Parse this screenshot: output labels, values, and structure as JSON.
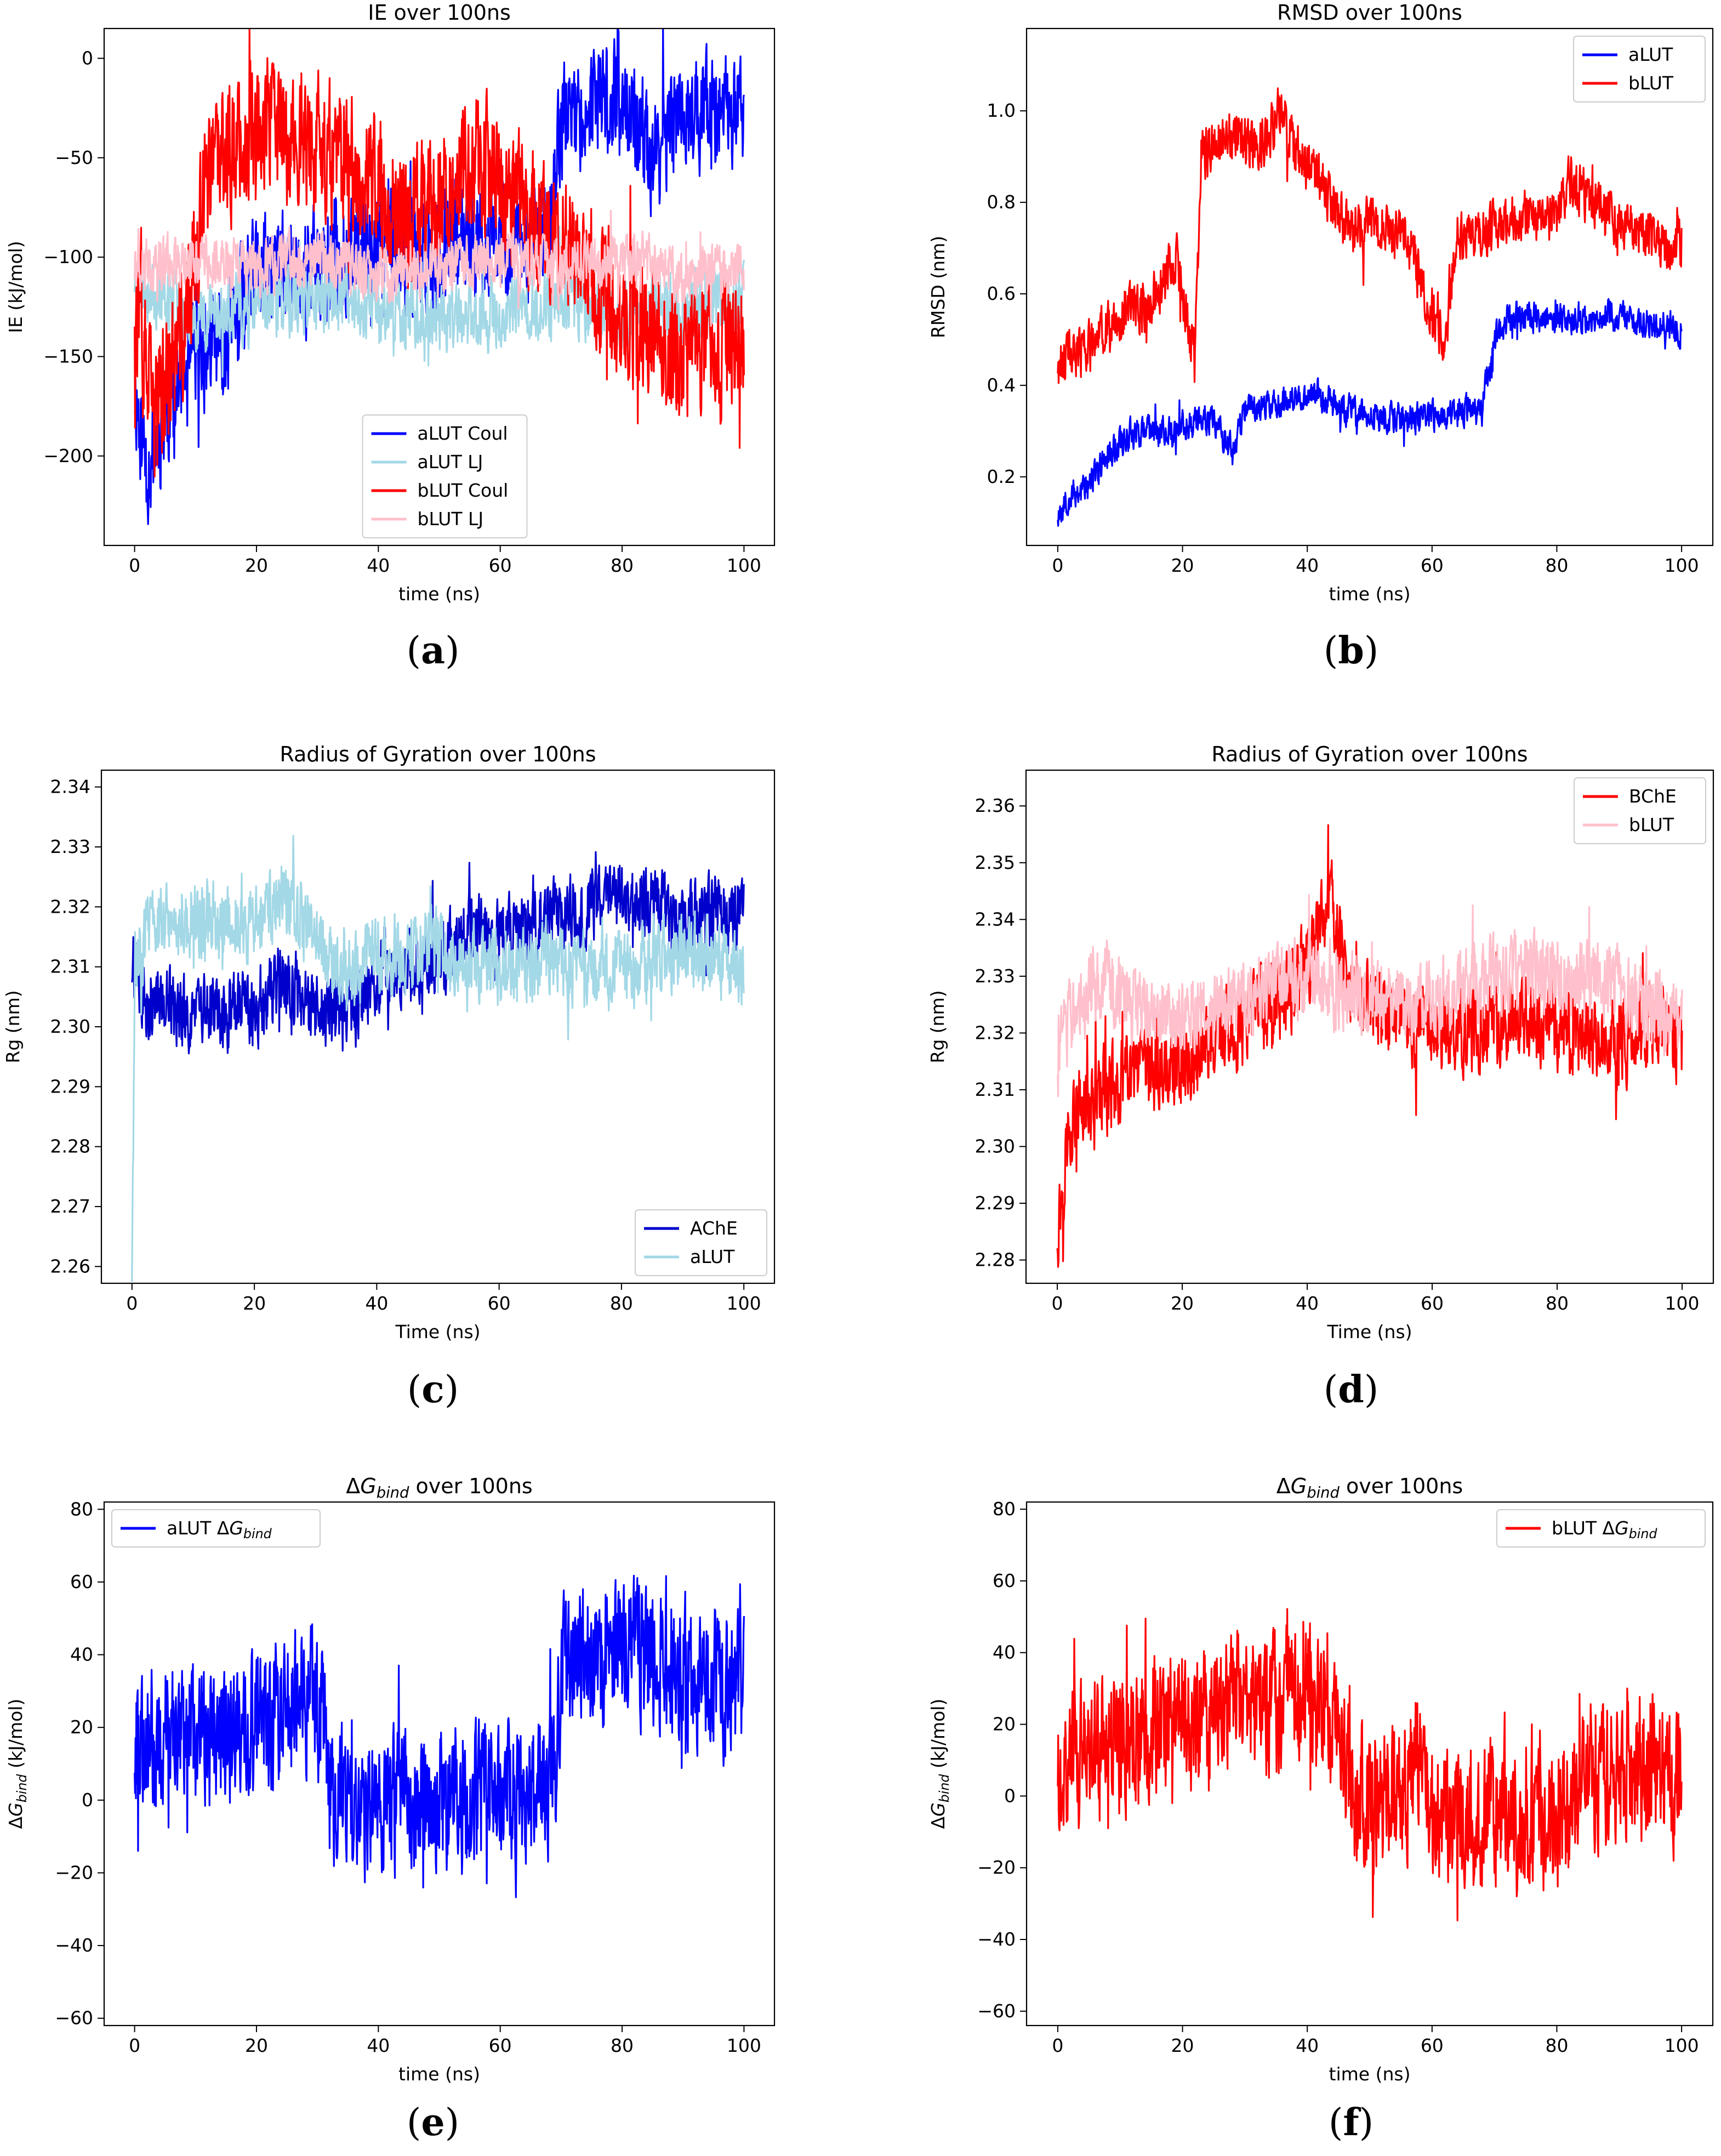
{
  "chart_data": [
    {
      "id": "a",
      "type": "line",
      "title": "IE over 100ns",
      "xlabel": "time (ns)",
      "ylabel": "IE (kJ/mol)",
      "xlim": [
        -5,
        105
      ],
      "ylim": [
        -245,
        15
      ],
      "xticks": [
        0,
        20,
        40,
        60,
        80,
        100
      ],
      "yticks": [
        0,
        -50,
        -100,
        -150,
        -200
      ],
      "legend_position": "lower-center",
      "caption": "(a)",
      "caption_letter": "a",
      "series": [
        {
          "name": "aLUT Coul",
          "color": "#0000ff",
          "segments": [
            [
              0,
              -165
            ],
            [
              2,
              -205
            ],
            [
              5,
              -180
            ],
            [
              10,
              -150
            ],
            [
              15,
              -140
            ],
            [
              20,
              -110
            ],
            [
              30,
              -105
            ],
            [
              40,
              -95
            ],
            [
              50,
              -100
            ],
            [
              60,
              -90
            ],
            [
              68,
              -95
            ],
            [
              70,
              -30
            ],
            [
              75,
              -25
            ],
            [
              80,
              -20
            ],
            [
              85,
              -50
            ],
            [
              90,
              -25
            ],
            [
              95,
              -30
            ],
            [
              100,
              -25
            ]
          ],
          "noise": 25,
          "seed": 11
        },
        {
          "name": "aLUT LJ",
          "color": "#a3d8e6",
          "segments": [
            [
              0,
              -110
            ],
            [
              10,
              -130
            ],
            [
              20,
              -125
            ],
            [
              30,
              -120
            ],
            [
              40,
              -125
            ],
            [
              50,
              -130
            ],
            [
              60,
              -130
            ],
            [
              70,
              -120
            ],
            [
              80,
              -130
            ],
            [
              90,
              -125
            ],
            [
              100,
              -120
            ]
          ],
          "noise": 15,
          "seed": 23
        },
        {
          "name": "bLUT Coul",
          "color": "#ff0000",
          "segments": [
            [
              0,
              -120
            ],
            [
              3,
              -180
            ],
            [
              8,
              -140
            ],
            [
              12,
              -60
            ],
            [
              20,
              -30
            ],
            [
              25,
              -40
            ],
            [
              30,
              -45
            ],
            [
              38,
              -60
            ],
            [
              45,
              -80
            ],
            [
              55,
              -50
            ],
            [
              62,
              -70
            ],
            [
              70,
              -90
            ],
            [
              75,
              -110
            ],
            [
              80,
              -130
            ],
            [
              85,
              -140
            ],
            [
              90,
              -150
            ],
            [
              100,
              -140
            ]
          ],
          "noise": 30,
          "seed": 37
        },
        {
          "name": "bLUT LJ",
          "color": "#ffc0cb",
          "segments": [
            [
              0,
              -105
            ],
            [
              10,
              -100
            ],
            [
              20,
              -105
            ],
            [
              30,
              -100
            ],
            [
              40,
              -110
            ],
            [
              50,
              -105
            ],
            [
              60,
              -100
            ],
            [
              70,
              -105
            ],
            [
              80,
              -100
            ],
            [
              90,
              -110
            ],
            [
              100,
              -105
            ]
          ],
          "noise": 12,
          "seed": 41
        }
      ]
    },
    {
      "id": "b",
      "type": "line",
      "title": "RMSD over 100ns",
      "xlabel": "time (ns)",
      "ylabel": "RMSD (nm)",
      "xlim": [
        -5,
        105
      ],
      "ylim": [
        0.05,
        1.18
      ],
      "xticks": [
        0,
        20,
        40,
        60,
        80,
        100
      ],
      "yticks": [
        0.2,
        0.4,
        0.6,
        0.8,
        1.0
      ],
      "legend_position": "top-right",
      "caption": "(b)",
      "caption_letter": "b",
      "series": [
        {
          "name": "aLUT",
          "color": "#0000ff",
          "segments": [
            [
              0,
              0.12
            ],
            [
              2,
              0.16
            ],
            [
              5,
              0.18
            ],
            [
              8,
              0.25
            ],
            [
              12,
              0.3
            ],
            [
              18,
              0.3
            ],
            [
              22,
              0.32
            ],
            [
              25,
              0.33
            ],
            [
              28,
              0.25
            ],
            [
              30,
              0.35
            ],
            [
              35,
              0.36
            ],
            [
              42,
              0.38
            ],
            [
              45,
              0.35
            ],
            [
              50,
              0.33
            ],
            [
              60,
              0.33
            ],
            [
              68,
              0.35
            ],
            [
              70,
              0.5
            ],
            [
              72,
              0.55
            ],
            [
              80,
              0.55
            ],
            [
              90,
              0.55
            ],
            [
              100,
              0.52
            ]
          ],
          "noise": 0.03,
          "seed": 53
        },
        {
          "name": "bLUT",
          "color": "#ff0000",
          "segments": [
            [
              0,
              0.45
            ],
            [
              5,
              0.48
            ],
            [
              10,
              0.55
            ],
            [
              15,
              0.58
            ],
            [
              19,
              0.68
            ],
            [
              21,
              0.52
            ],
            [
              22,
              0.48
            ],
            [
              23,
              0.9
            ],
            [
              28,
              0.95
            ],
            [
              32,
              0.92
            ],
            [
              36,
              1.0
            ],
            [
              38,
              0.92
            ],
            [
              42,
              0.85
            ],
            [
              46,
              0.75
            ],
            [
              50,
              0.75
            ],
            [
              56,
              0.72
            ],
            [
              60,
              0.55
            ],
            [
              62,
              0.5
            ],
            [
              64,
              0.72
            ],
            [
              70,
              0.75
            ],
            [
              80,
              0.78
            ],
            [
              82,
              0.85
            ],
            [
              90,
              0.75
            ],
            [
              100,
              0.7
            ]
          ],
          "noise": 0.05,
          "seed": 61
        }
      ]
    },
    {
      "id": "c",
      "type": "line",
      "title": "Radius of Gyration over 100ns",
      "xlabel": "Time (ns)",
      "ylabel": "Rg (nm)",
      "xlim": [
        -5,
        105
      ],
      "ylim": [
        2.2572,
        2.3428
      ],
      "xticks": [
        0,
        20,
        40,
        60,
        80,
        100
      ],
      "yticks": [
        2.26,
        2.27,
        2.28,
        2.29,
        2.3,
        2.31,
        2.32,
        2.33,
        2.34
      ],
      "legend_position": "bottom-right",
      "caption": "(c)",
      "caption_letter": "c",
      "series": [
        {
          "name": "AChE",
          "color": "#0000cd",
          "segments": [
            [
              0,
              2.31
            ],
            [
              2,
              2.305
            ],
            [
              10,
              2.302
            ],
            [
              20,
              2.303
            ],
            [
              25,
              2.308
            ],
            [
              30,
              2.303
            ],
            [
              36,
              2.301
            ],
            [
              40,
              2.309
            ],
            [
              50,
              2.312
            ],
            [
              55,
              2.316
            ],
            [
              60,
              2.315
            ],
            [
              70,
              2.318
            ],
            [
              80,
              2.322
            ],
            [
              90,
              2.318
            ],
            [
              100,
              2.32
            ]
          ],
          "noise": 0.0055,
          "seed": 71
        },
        {
          "name": "aLUT",
          "color": "#a3d8e6",
          "segments": [
            [
              0,
              2.26
            ],
            [
              0.5,
              2.31
            ],
            [
              3,
              2.318
            ],
            [
              10,
              2.318
            ],
            [
              20,
              2.317
            ],
            [
              25,
              2.322
            ],
            [
              30,
              2.314
            ],
            [
              35,
              2.308
            ],
            [
              40,
              2.312
            ],
            [
              50,
              2.313
            ],
            [
              60,
              2.31
            ],
            [
              70,
              2.311
            ],
            [
              80,
              2.309
            ],
            [
              90,
              2.313
            ],
            [
              100,
              2.31
            ]
          ],
          "noise": 0.0055,
          "seed": 83
        }
      ]
    },
    {
      "id": "d",
      "type": "line",
      "title": "Radius of Gyration over 100ns",
      "xlabel": "Time (ns)",
      "ylabel": "Rg (nm)",
      "xlim": [
        -5,
        105
      ],
      "ylim": [
        2.2759,
        2.3663
      ],
      "xticks": [
        0,
        20,
        40,
        60,
        80,
        100
      ],
      "yticks": [
        2.28,
        2.29,
        2.3,
        2.31,
        2.32,
        2.33,
        2.34,
        2.35,
        2.36
      ],
      "legend_position": "top-right",
      "caption": "(d)",
      "caption_letter": "d",
      "series": [
        {
          "name": "BChE",
          "color": "#ff0000",
          "segments": [
            [
              0,
              2.285
            ],
            [
              2,
              2.305
            ],
            [
              8,
              2.31
            ],
            [
              15,
              2.313
            ],
            [
              20,
              2.315
            ],
            [
              30,
              2.322
            ],
            [
              38,
              2.328
            ],
            [
              42,
              2.338
            ],
            [
              44,
              2.345
            ],
            [
              46,
              2.328
            ],
            [
              55,
              2.322
            ],
            [
              65,
              2.32
            ],
            [
              75,
              2.322
            ],
            [
              85,
              2.32
            ],
            [
              90,
              2.318
            ],
            [
              95,
              2.322
            ],
            [
              100,
              2.318
            ]
          ],
          "noise": 0.0065,
          "seed": 97
        },
        {
          "name": "bLUT",
          "color": "#ffc0cb",
          "segments": [
            [
              0,
              2.315
            ],
            [
              3,
              2.325
            ],
            [
              8,
              2.33
            ],
            [
              12,
              2.325
            ],
            [
              20,
              2.322
            ],
            [
              30,
              2.326
            ],
            [
              40,
              2.33
            ],
            [
              50,
              2.326
            ],
            [
              60,
              2.326
            ],
            [
              70,
              2.33
            ],
            [
              80,
              2.33
            ],
            [
              90,
              2.328
            ],
            [
              100,
              2.322
            ]
          ],
          "noise": 0.006,
          "seed": 103
        }
      ]
    },
    {
      "id": "e",
      "type": "line",
      "title": "ΔG",
      "title_sub": "bind",
      "title_suffix": " over 100ns",
      "xlabel": "time (ns)",
      "ylabel": "ΔG",
      "ylabel_sub": "bind",
      "ylabel_suffix": " (kJ/mol)",
      "xlim": [
        -5,
        105
      ],
      "ylim": [
        -62,
        82
      ],
      "xticks": [
        0,
        20,
        40,
        60,
        80,
        100
      ],
      "yticks": [
        80,
        60,
        40,
        20,
        0,
        -20,
        -40,
        -60
      ],
      "legend_position": "top-left",
      "caption": "(e)",
      "caption_letter": "e",
      "series": [
        {
          "name": "aLUT ΔG",
          "name_sub": "bind",
          "color": "#0000ff",
          "segments": [
            [
              0,
              15
            ],
            [
              10,
              18
            ],
            [
              20,
              20
            ],
            [
              28,
              28
            ],
            [
              31,
              25
            ],
            [
              32,
              2
            ],
            [
              40,
              -2
            ],
            [
              50,
              0
            ],
            [
              60,
              2
            ],
            [
              69,
              5
            ],
            [
              70,
              38
            ],
            [
              80,
              40
            ],
            [
              90,
              35
            ],
            [
              100,
              30
            ]
          ],
          "noise": 17,
          "seed": 113
        }
      ]
    },
    {
      "id": "f",
      "type": "line",
      "title": "ΔG",
      "title_sub": "bind",
      "title_suffix": " over 100ns",
      "xlabel": "time (ns)",
      "ylabel": "ΔG",
      "ylabel_sub": "bind",
      "ylabel_suffix": " (kJ/mol)",
      "xlim": [
        -5,
        105
      ],
      "ylim": [
        -64,
        82
      ],
      "xticks": [
        0,
        20,
        40,
        60,
        80,
        100
      ],
      "yticks": [
        80,
        60,
        40,
        20,
        0,
        -20,
        -40,
        -60
      ],
      "legend_position": "top-right",
      "caption": "(f)",
      "caption_letter": "f",
      "series": [
        {
          "name": "bLUT ΔG",
          "name_sub": "bind",
          "color": "#ff0000",
          "segments": [
            [
              0,
              10
            ],
            [
              10,
              15
            ],
            [
              20,
              22
            ],
            [
              30,
              25
            ],
            [
              40,
              28
            ],
            [
              45,
              22
            ],
            [
              47,
              0
            ],
            [
              55,
              -2
            ],
            [
              58,
              15
            ],
            [
              60,
              -5
            ],
            [
              70,
              -5
            ],
            [
              78,
              -10
            ],
            [
              85,
              5
            ],
            [
              90,
              8
            ],
            [
              100,
              5
            ]
          ],
          "noise": 17,
          "seed": 127
        }
      ]
    }
  ]
}
